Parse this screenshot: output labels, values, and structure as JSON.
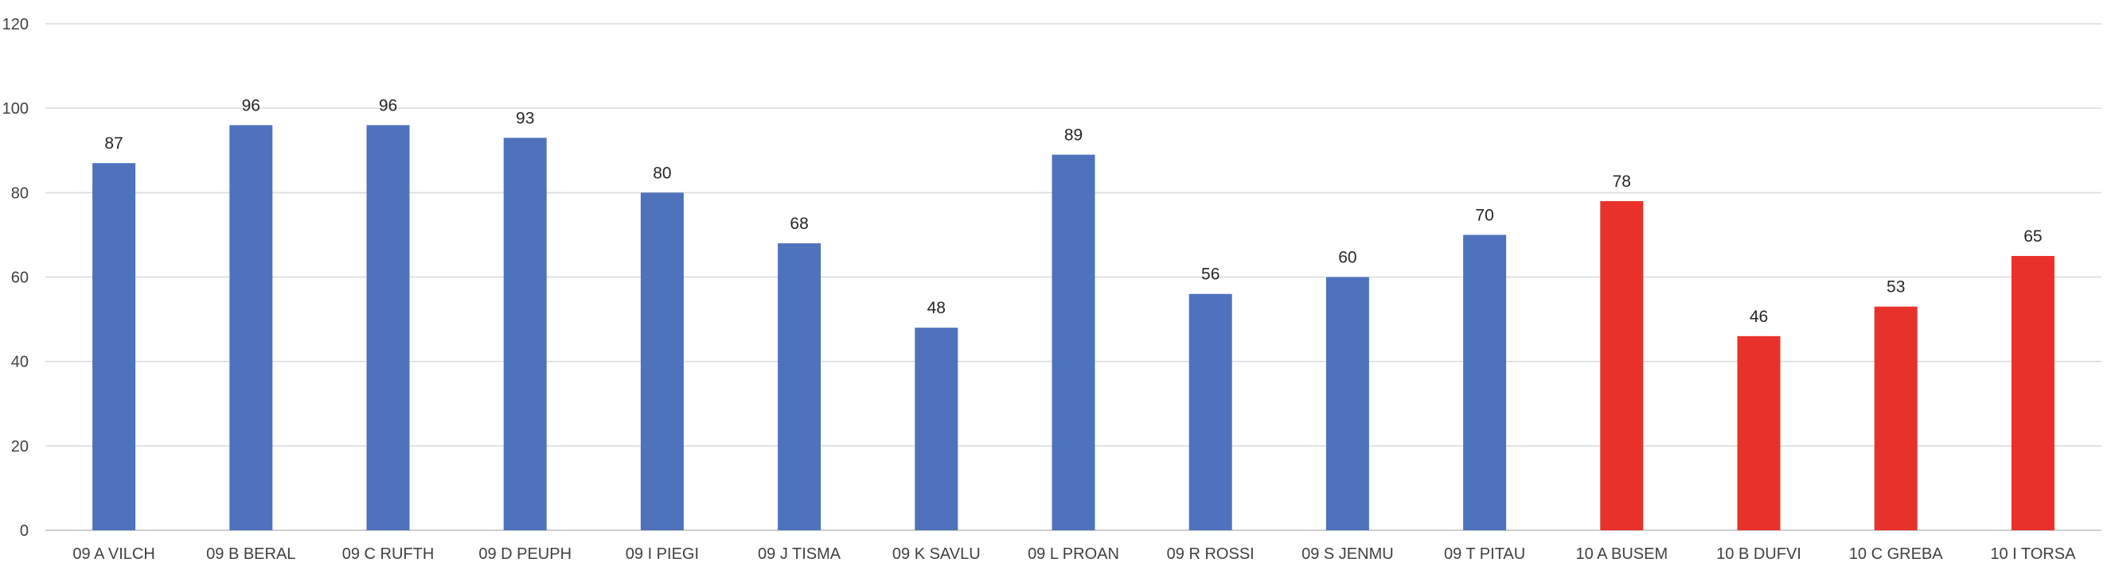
{
  "chart_data": {
    "type": "bar",
    "title": "",
    "xlabel": "",
    "ylabel": "",
    "categories": [
      "09 A VILCH",
      "09 B BERAL",
      "09 C RUFTH",
      "09 D PEUPH",
      "09 I PIEGI",
      "09 J TISMA",
      "09 K SAVLU",
      "09 L PROAN",
      "09 R ROSSI",
      "09 S JENMU",
      "09 T PITAU",
      "10 A BUSEM",
      "10 B DUFVI",
      "10 C GREBA",
      "10 I TORSA"
    ],
    "values": [
      87,
      96,
      96,
      93,
      80,
      68,
      48,
      89,
      56,
      60,
      70,
      78,
      46,
      53,
      65
    ],
    "bar_colors": [
      "#4f72bd",
      "#4f72bd",
      "#4f72bd",
      "#4f72bd",
      "#4f72bd",
      "#4f72bd",
      "#4f72bd",
      "#4f72bd",
      "#4f72bd",
      "#4f72bd",
      "#4f72bd",
      "#e8312a",
      "#e8312a",
      "#e8312a",
      "#e8312a"
    ],
    "ylim": [
      0,
      120
    ],
    "yticks": [
      0,
      20,
      40,
      60,
      80,
      100,
      120
    ],
    "grid": true,
    "data_labels": true,
    "legend": "none"
  }
}
